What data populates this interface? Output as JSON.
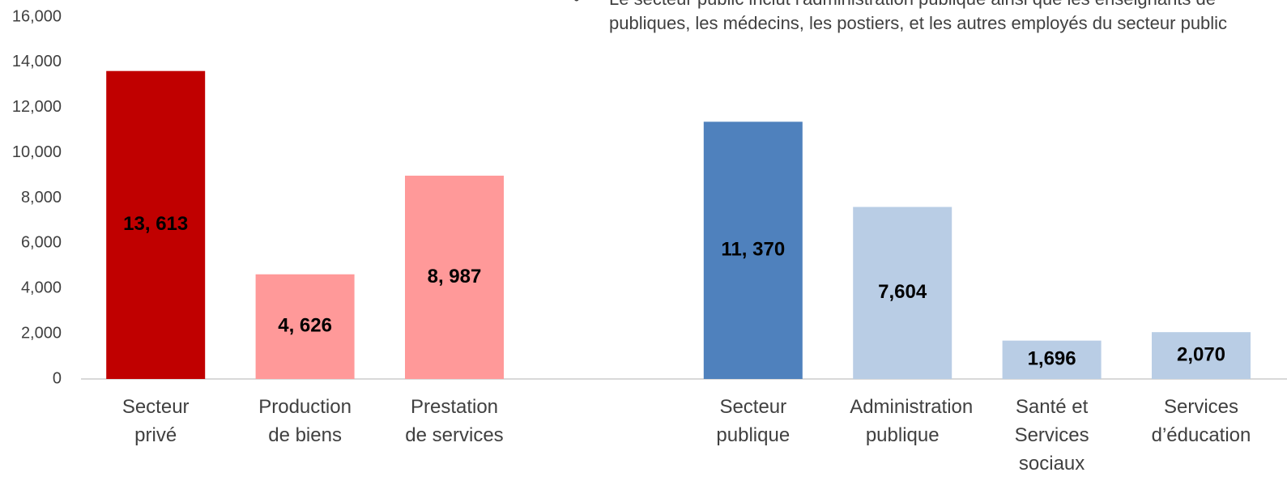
{
  "chart_data": {
    "type": "bar",
    "annotations": [
      "Le secteur public inclut l'administration publique ainsi que les enseignants de",
      "publiques, les médecins, les postiers, et les autres employés du secteur public"
    ],
    "categories": [
      "Secteur privé",
      "Production de biens",
      "Prestation de services",
      null,
      "Secteur publique",
      "Administration publique",
      "Santé et Services sociaux",
      "Services d’éducation"
    ],
    "values": [
      13613,
      4626,
      8987,
      null,
      11370,
      7604,
      1696,
      2070
    ],
    "value_labels": [
      "13, 613",
      "4, 626",
      "8, 987",
      null,
      "11, 370",
      "7,604",
      "1,696",
      "2,070"
    ],
    "colors": [
      "#c00000",
      "#ff9999",
      "#ff9999",
      null,
      "#4f81bd",
      "#b9cde5",
      "#b9cde5",
      "#b9cde5"
    ],
    "ylim": [
      0,
      16000
    ],
    "yticks": [
      0,
      {
        "value": 2000,
        "label": "2,000"
      },
      {
        "value": 4000,
        "label": "4,000"
      },
      {
        "value": 6000,
        "label": "6,000"
      },
      {
        "value": 8000,
        "label": "8,000"
      },
      {
        "value": 10000,
        "label": "10,000"
      },
      {
        "value": 12000,
        "label": "12,000"
      },
      {
        "value": 14000,
        "label": "14,000"
      },
      {
        "value": 16000,
        "label": "16,000"
      }
    ],
    "grid": false
  }
}
